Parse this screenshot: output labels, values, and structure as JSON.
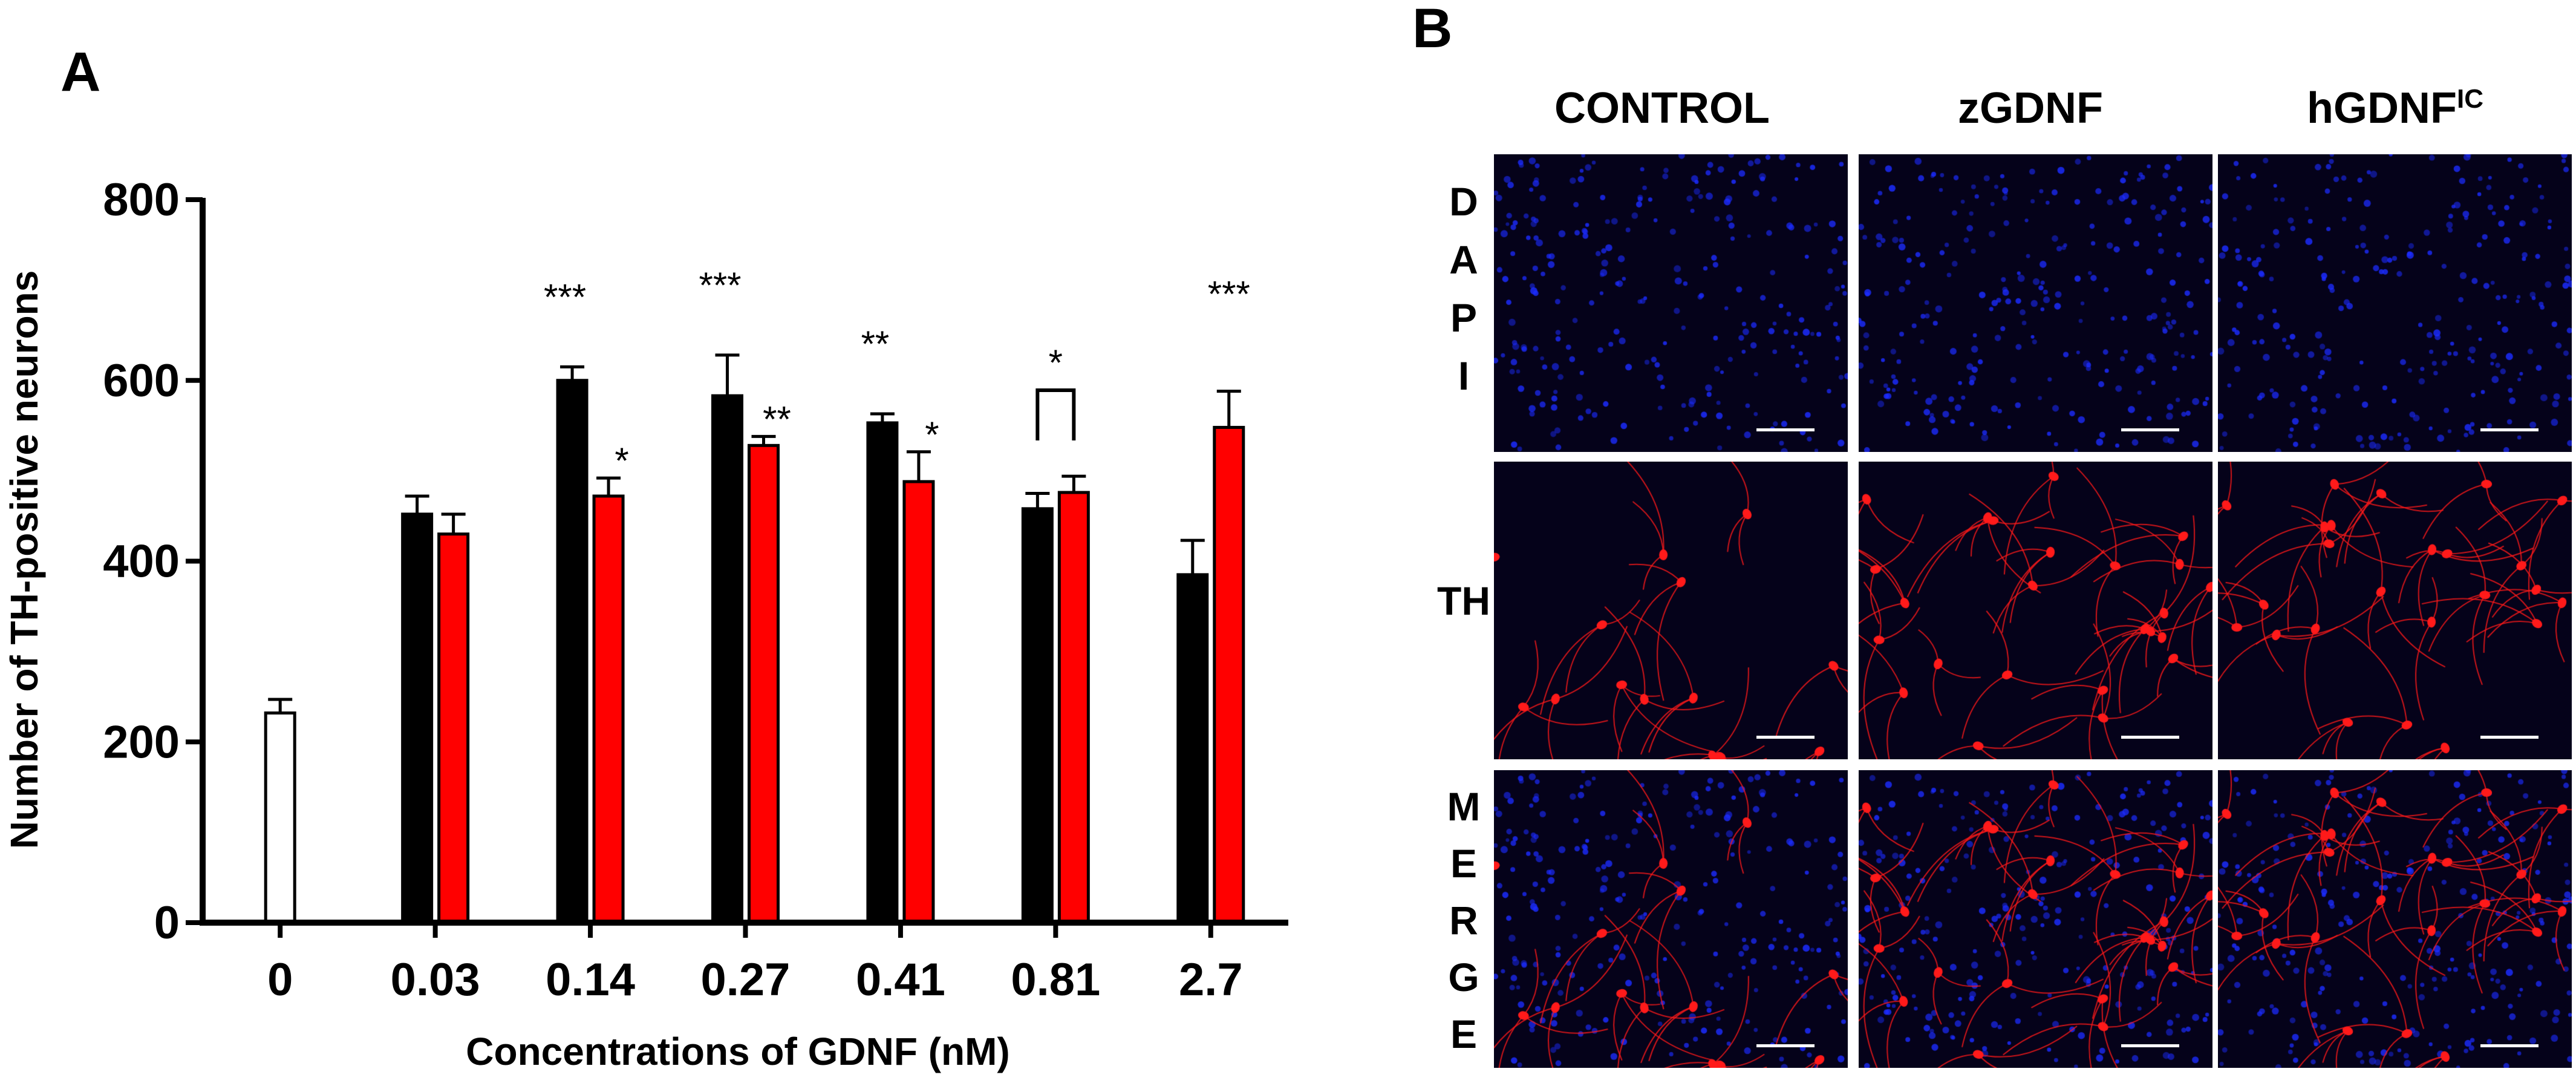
{
  "panel_a_label": "A",
  "panel_b_label": "B",
  "chart_data": {
    "type": "bar",
    "xlabel": "Concentrations of GDNF (nM)",
    "ylabel": "Number of TH-positive neurons",
    "ylim": [
      0,
      800
    ],
    "yticks": [
      0,
      200,
      400,
      600,
      800
    ],
    "grid": false,
    "categories": [
      "0",
      "0.03",
      "0.14",
      "0.27",
      "0.41",
      "0.81",
      "2.7"
    ],
    "control": {
      "category": "0",
      "value": 232,
      "error": 15,
      "color": "#ffffff"
    },
    "series": [
      {
        "color": "#000000",
        "values": [
          null,
          452,
          600,
          583,
          553,
          458,
          385
        ],
        "errors": [
          null,
          20,
          15,
          45,
          10,
          17,
          38
        ],
        "annotations": [
          "",
          "",
          "***",
          "***",
          "**",
          "",
          ""
        ]
      },
      {
        "color": "#ff0000",
        "values": [
          null,
          430,
          472,
          528,
          488,
          476,
          548
        ],
        "errors": [
          null,
          22,
          20,
          10,
          33,
          18,
          40
        ],
        "annotations": [
          "",
          "",
          "*",
          "**",
          "*",
          "",
          "***"
        ]
      }
    ],
    "bracket": {
      "category": "0.81",
      "label": "*"
    }
  },
  "panel_b": {
    "columns": [
      "CONTROL",
      "zGDNF",
      "hGDNF"
    ],
    "column_superscript": "IC",
    "rows": [
      {
        "letters": [
          "D",
          "A",
          "P",
          "I"
        ],
        "stain": "dapi"
      },
      {
        "letters": [
          "TH"
        ],
        "stain": "th"
      },
      {
        "letters": [
          "M",
          "E",
          "R",
          "G",
          "E"
        ],
        "stain": "merge"
      }
    ],
    "colors": {
      "dapi": "#1c2cff",
      "th": "#ff1a1a",
      "background": "#05021a"
    }
  }
}
